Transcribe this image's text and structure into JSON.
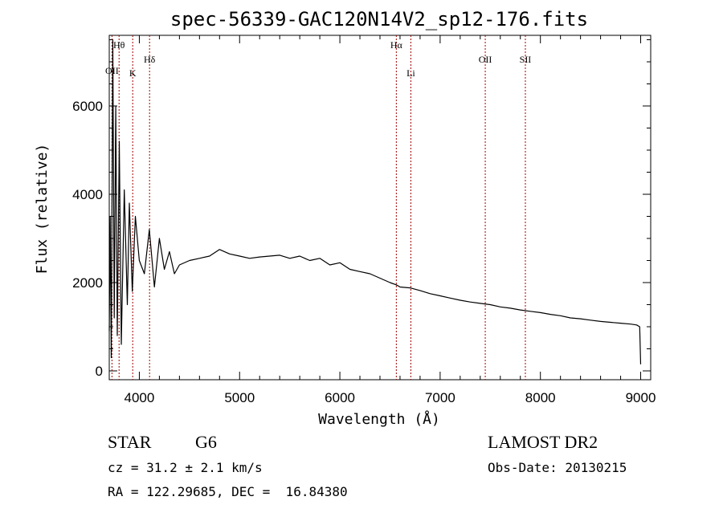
{
  "chart_data": {
    "type": "line",
    "title": "spec-56339-GAC120N14V2_sp12-176.fits",
    "xlabel": "Wavelength (Å)",
    "ylabel": "Flux (relative)",
    "xlim": [
      3700,
      9100
    ],
    "ylim": [
      -200,
      7600
    ],
    "xticks": [
      4000,
      5000,
      6000,
      7000,
      8000,
      9000
    ],
    "yticks": [
      0,
      2000,
      4000,
      6000
    ],
    "grid": false,
    "series": [
      {
        "x": [
          3700,
          3710,
          3720,
          3735,
          3750,
          3765,
          3780,
          3800,
          3820,
          3850,
          3880,
          3900,
          3930,
          3960,
          4000,
          4050,
          4100,
          4150,
          4200,
          4250,
          4300,
          4350,
          4400,
          4500,
          4600,
          4700,
          4800,
          4900,
          5000,
          5100,
          5200,
          5300,
          5400,
          5500,
          5600,
          5700,
          5800,
          5900,
          6000,
          6100,
          6200,
          6300,
          6400,
          6500,
          6563,
          6600,
          6700,
          6800,
          6900,
          7000,
          7100,
          7200,
          7300,
          7400,
          7500,
          7600,
          7700,
          7800,
          7900,
          8000,
          8100,
          8200,
          8300,
          8400,
          8500,
          8600,
          8700,
          8800,
          8900,
          8960,
          8990,
          9000
        ],
        "y": [
          900,
          3500,
          300,
          7500,
          1200,
          6000,
          800,
          5200,
          600,
          4100,
          1500,
          3800,
          1800,
          3500,
          2500,
          2200,
          3200,
          1900,
          3000,
          2300,
          2700,
          2200,
          2400,
          2500,
          2550,
          2600,
          2750,
          2650,
          2600,
          2550,
          2580,
          2600,
          2620,
          2550,
          2600,
          2500,
          2550,
          2400,
          2450,
          2300,
          2250,
          2200,
          2100,
          2000,
          1950,
          1900,
          1880,
          1820,
          1750,
          1700,
          1650,
          1600,
          1560,
          1530,
          1500,
          1450,
          1420,
          1380,
          1350,
          1320,
          1280,
          1250,
          1200,
          1180,
          1150,
          1120,
          1100,
          1080,
          1060,
          1040,
          1000,
          150
        ]
      }
    ],
    "lines": [
      {
        "label": "OII",
        "x": 3727
      },
      {
        "label": "Hθ",
        "x": 3798
      },
      {
        "label": "K",
        "x": 3934
      },
      {
        "label": "Hδ",
        "x": 4102
      },
      {
        "label": "Hα",
        "x": 6563
      },
      {
        "label": "Li",
        "x": 6708
      },
      {
        "label": "OII",
        "x": 7450
      },
      {
        "label": "SII",
        "x": 7850
      }
    ],
    "line_color": "#000000",
    "marker_color": "#a00000"
  },
  "info": {
    "object_class": "STAR",
    "subclass": "G6",
    "survey": "LAMOST DR2",
    "redshift": "cz = 31.2 ± 2.1 km/s",
    "obs_date": "Obs-Date: 20130215",
    "coords": "RA = 122.29685, DEC =  16.84380"
  }
}
